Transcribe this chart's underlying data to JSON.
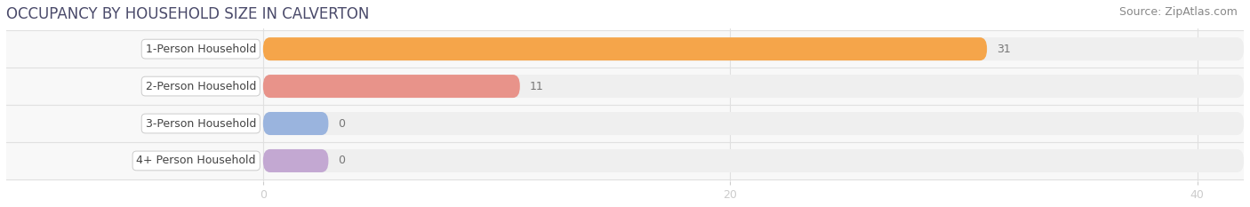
{
  "title": "OCCUPANCY BY HOUSEHOLD SIZE IN CALVERTON",
  "source": "Source: ZipAtlas.com",
  "categories": [
    "1-Person Household",
    "2-Person Household",
    "3-Person Household",
    "4+ Person Household"
  ],
  "values": [
    31,
    11,
    0,
    0
  ],
  "bar_colors": [
    "#F5A54A",
    "#E8938A",
    "#9AB4DE",
    "#C3A8D2"
  ],
  "bar_bg_color": "#EFEFEF",
  "row_bg_colors": [
    "#FAFAFA",
    "#FAFAFA",
    "#FAFAFA",
    "#FAFAFA"
  ],
  "xlim_data": [
    0,
    42
  ],
  "xlim_display": [
    -11,
    42
  ],
  "xticks": [
    0,
    20,
    40
  ],
  "title_color": "#4a4a6a",
  "source_color": "#888888",
  "title_fontsize": 12,
  "source_fontsize": 9,
  "bar_label_fontsize": 9,
  "category_fontsize": 9,
  "tick_fontsize": 9,
  "bar_height": 0.62,
  "row_sep_color": "#E0E0E0"
}
